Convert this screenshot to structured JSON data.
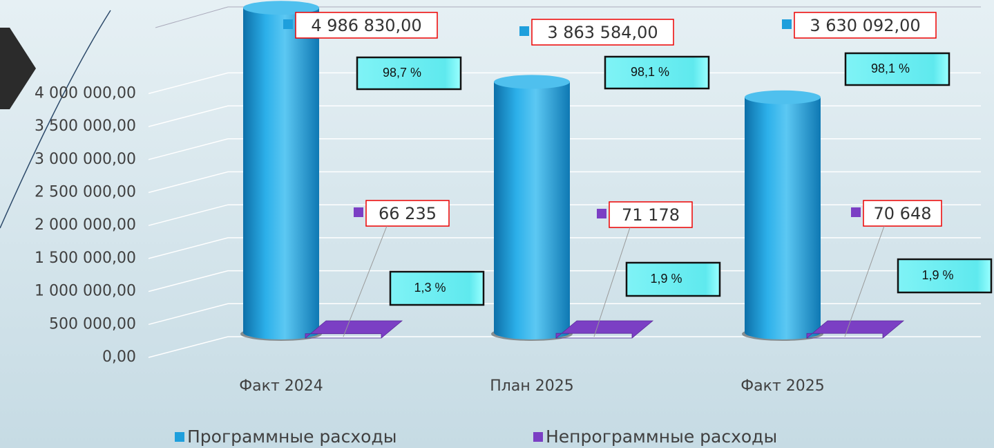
{
  "chart_data": {
    "type": "bar3d",
    "categories": [
      "Факт 2024",
      "План 2025",
      "Факт 2025"
    ],
    "series": [
      {
        "name": "Программные расходы",
        "color": "#1e9fdc",
        "values": [
          4986830,
          3863584,
          3630092
        ],
        "value_labels": [
          "4 986 830,00",
          "3 863 584,00",
          "3 630 092,00"
        ],
        "shares": [
          98.7,
          98.1,
          98.1
        ],
        "share_labels": [
          "98,7 %",
          "98,1 %",
          "98,1 %"
        ]
      },
      {
        "name": "Непрограммные расходы",
        "color": "#7b3fc4",
        "values": [
          66235,
          71178,
          70648
        ],
        "value_labels": [
          "66 235",
          "71 178",
          "70 648"
        ],
        "shares": [
          1.3,
          1.9,
          1.9
        ],
        "share_labels": [
          "1,3 %",
          "1,9 %",
          "1,9 %"
        ]
      }
    ],
    "ylim": [
      0,
      5000000
    ],
    "yticks": [
      {
        "value": 0,
        "label": "0,00"
      },
      {
        "value": 500000,
        "label": "500 000,00"
      },
      {
        "value": 1000000,
        "label": "1 000 000,00"
      },
      {
        "value": 1500000,
        "label": "1 500 000,00"
      },
      {
        "value": 2000000,
        "label": "2 000 000,00"
      },
      {
        "value": 2500000,
        "label": "2 500 000,00"
      },
      {
        "value": 3000000,
        "label": "3 000 000,00"
      },
      {
        "value": 3500000,
        "label": "3 500 000,00"
      },
      {
        "value": 4000000,
        "label": "4 000 000,00"
      }
    ],
    "grid": true,
    "legend": "bottom"
  }
}
